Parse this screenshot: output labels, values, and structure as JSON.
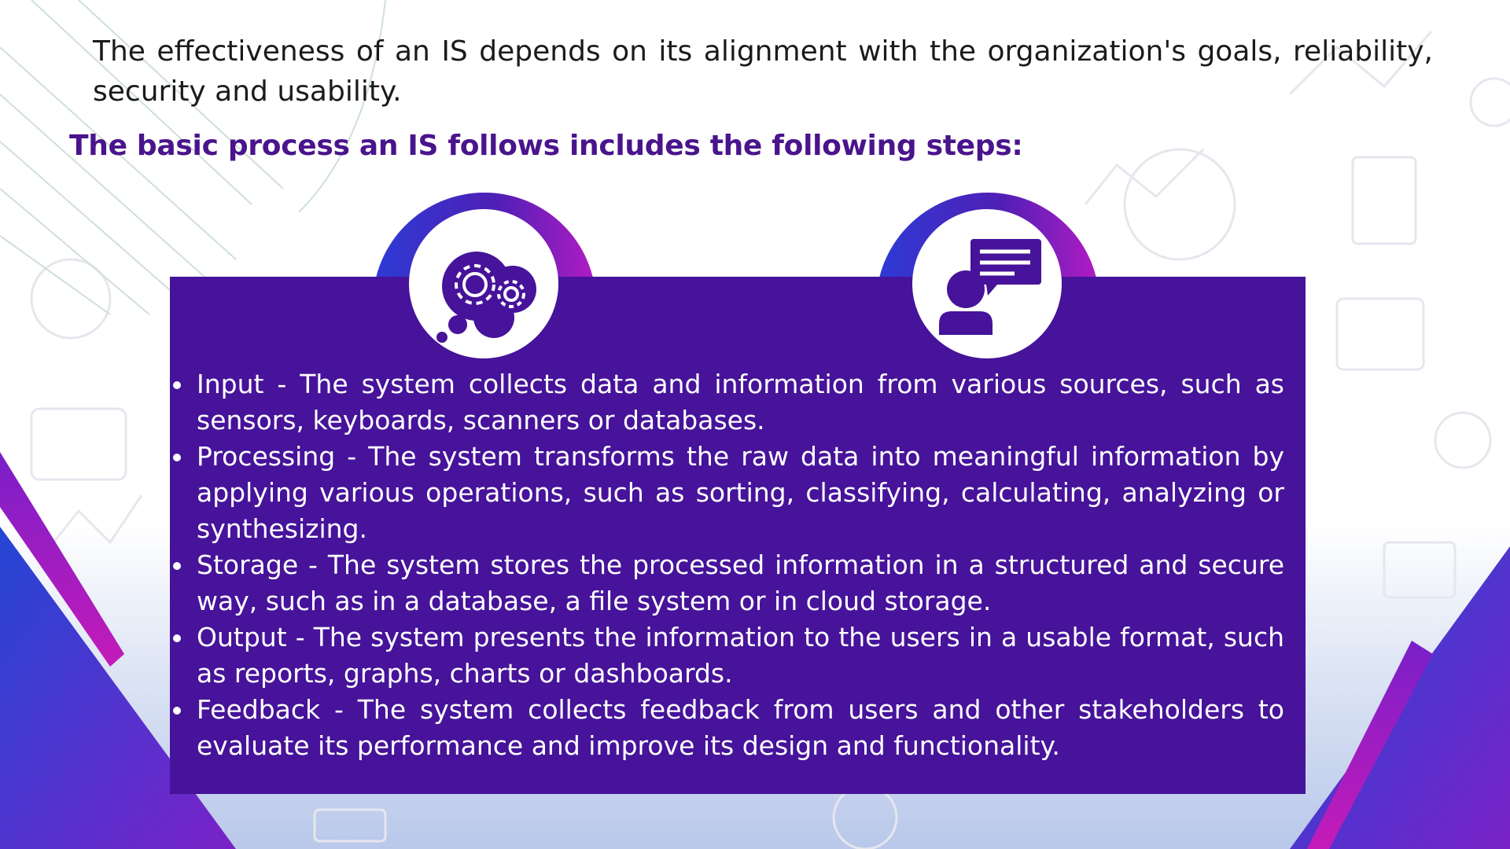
{
  "intro_text": "The effectiveness of an IS depends on its alignment with the organization's goals, reliability, security and usability.",
  "heading": "The basic process an IS follows includes the following steps:",
  "icons": {
    "left": "gears-thought-bubble-icon",
    "right": "person-speech-bubble-icon"
  },
  "steps": [
    "Input - The system collects data and information from various sources, such as sensors, keyboards, scanners or databases.",
    "Processing - The system transforms the raw data into meaningful information by applying various operations, such as sorting, classifying, calculating, analyzing or synthesizing.",
    "Storage - The system stores the processed information in a structured and secure way, such as in a database, a file system or in cloud storage.",
    "Output - The system presents the information to the users in a usable format, such as reports, graphs, charts or dashboards.",
    "Feedback - The system collects feedback from users and other stakeholders to evaluate its performance and improve its design and functionality."
  ],
  "colors": {
    "panel": "#46139a",
    "heading": "#4a148c",
    "accent_magenta": "#b21cc4",
    "accent_blue": "#2d3bd6"
  }
}
